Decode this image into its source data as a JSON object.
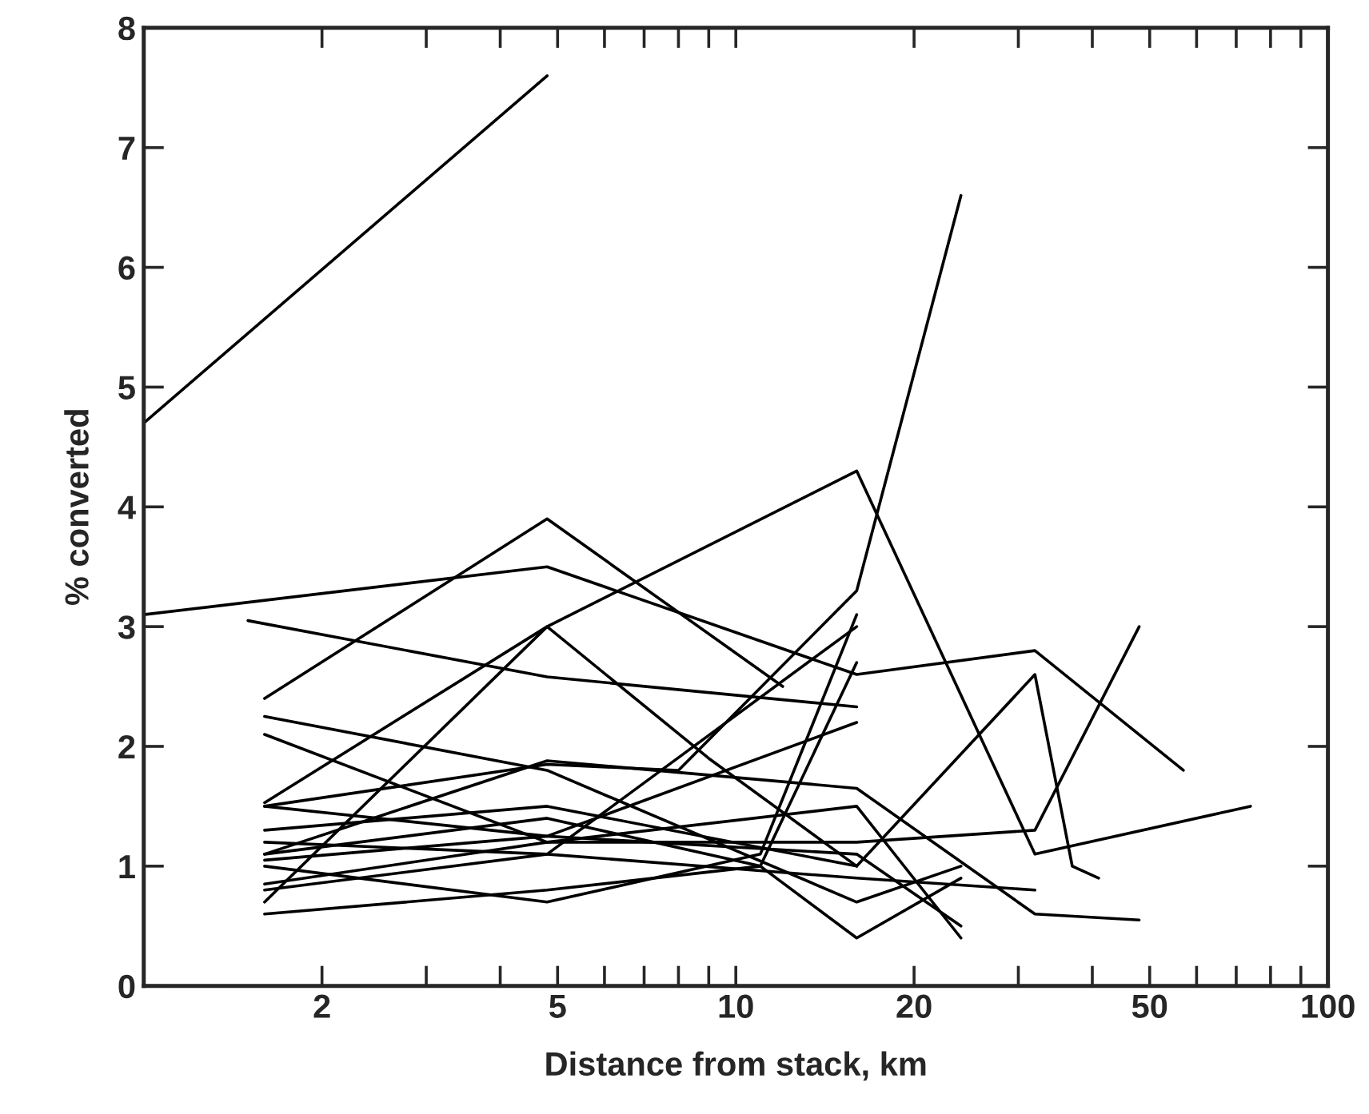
{
  "chart_data": {
    "type": "line",
    "xlabel": "Distance from stack, km",
    "ylabel": "% converted",
    "log": "x",
    "xlim": [
      1,
      100
    ],
    "ylim": [
      0,
      8
    ],
    "grid": false,
    "legend": false,
    "marker": "none",
    "line_style": "solid",
    "xticks": [
      2,
      {
        "value": 3,
        "label": null
      },
      {
        "value": 4,
        "label": null
      },
      5,
      {
        "value": 6,
        "label": null
      },
      {
        "value": 7,
        "label": null
      },
      {
        "value": 8,
        "label": null
      },
      {
        "value": 9,
        "label": null
      },
      10,
      20,
      {
        "value": 30,
        "label": null
      },
      {
        "value": 40,
        "label": null
      },
      50,
      {
        "value": 60,
        "label": null
      },
      {
        "value": 70,
        "label": null
      },
      {
        "value": 80,
        "label": null
      },
      {
        "value": 90,
        "label": null
      },
      100
    ],
    "yticks": [
      0,
      1,
      2,
      3,
      4,
      5,
      6,
      7,
      8
    ],
    "series": [
      {
        "color": "#000000",
        "x": [
          1,
          4.8
        ],
        "values": [
          4.7,
          7.6
        ]
      },
      {
        "color": "#000000",
        "x": [
          1,
          4.8,
          16,
          32,
          57
        ],
        "values": [
          3.1,
          3.5,
          2.6,
          2.8,
          1.8
        ]
      },
      {
        "color": "#000000",
        "x": [
          1.6,
          4.8,
          12
        ],
        "values": [
          2.4,
          3.9,
          2.5
        ]
      },
      {
        "color": "#000000",
        "x": [
          1.5,
          4.8,
          16
        ],
        "values": [
          3.05,
          2.58,
          2.33
        ]
      },
      {
        "color": "#000000",
        "x": [
          1.6,
          4.8,
          8,
          16,
          24
        ],
        "values": [
          1.5,
          1.85,
          1.8,
          3.3,
          6.6
        ]
      },
      {
        "color": "#000000",
        "x": [
          1.6,
          4.8,
          16,
          32,
          74
        ],
        "values": [
          1.53,
          3.0,
          4.3,
          1.1,
          1.5
        ]
      },
      {
        "color": "#000000",
        "x": [
          1.6,
          4.8,
          9,
          16
        ],
        "values": [
          0.7,
          3.0,
          1.9,
          1.0
        ]
      },
      {
        "color": "#000000",
        "x": [
          1.6,
          4.8,
          16,
          24
        ],
        "values": [
          2.25,
          1.8,
          0.7,
          1.0
        ]
      },
      {
        "color": "#000000",
        "x": [
          1.6,
          4.8,
          16,
          24
        ],
        "values": [
          2.1,
          1.2,
          1.5,
          0.4
        ]
      },
      {
        "color": "#000000",
        "x": [
          1.6,
          4.8,
          16,
          32,
          48
        ],
        "values": [
          1.1,
          1.88,
          1.65,
          0.6,
          0.55
        ]
      },
      {
        "color": "#000000",
        "x": [
          1.6,
          4.8,
          11,
          16
        ],
        "values": [
          1.0,
          0.7,
          1.1,
          3.1
        ]
      },
      {
        "color": "#000000",
        "x": [
          1.6,
          4.8,
          11,
          16
        ],
        "values": [
          0.6,
          0.8,
          1.0,
          2.7
        ]
      },
      {
        "color": "#000000",
        "x": [
          1.6,
          4.8,
          16,
          32,
          48
        ],
        "values": [
          0.85,
          1.2,
          1.2,
          1.3,
          3.0
        ]
      },
      {
        "color": "#000000",
        "x": [
          1.6,
          4.8,
          16,
          32,
          37,
          41
        ],
        "values": [
          1.3,
          1.5,
          1.0,
          2.6,
          1.0,
          0.9
        ]
      },
      {
        "color": "#000000",
        "x": [
          1.6,
          4.8,
          11,
          16,
          24
        ],
        "values": [
          1.1,
          1.4,
          1.0,
          0.4,
          0.9
        ]
      },
      {
        "color": "#000000",
        "x": [
          1.6,
          4.8,
          16,
          32
        ],
        "values": [
          1.2,
          1.1,
          0.9,
          0.8
        ]
      },
      {
        "color": "#000000",
        "x": [
          1.6,
          4.8,
          16
        ],
        "values": [
          0.8,
          1.1,
          3.0
        ]
      },
      {
        "color": "#000000",
        "x": [
          1.6,
          4.8,
          16
        ],
        "values": [
          1.05,
          1.25,
          2.2
        ]
      },
      {
        "color": "#000000",
        "x": [
          1.6,
          4.8,
          16,
          24
        ],
        "values": [
          1.5,
          1.25,
          1.1,
          0.5
        ]
      }
    ]
  }
}
